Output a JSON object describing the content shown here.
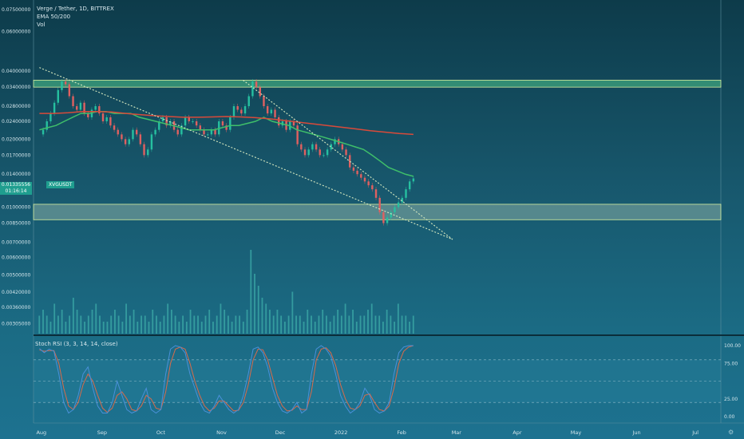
{
  "legend": {
    "title": "Verge / Tether, 1D, BITTREX",
    "ema": "EMA 50/200",
    "vol": "Vol"
  },
  "price_tag": {
    "price": "0.01335556",
    "countdown": "01:16:14"
  },
  "symbol_tag": "XVGUSDT",
  "stoch_title": "Stoch RSI (3, 3, 14, 14, close)",
  "colors": {
    "ema50": "#3fbf6a",
    "ema200": "#d94a3a",
    "zone_fill": "#9fe0b4",
    "zone_border": "#d8f0a0",
    "trend": "#d6e9c0",
    "vol": "#3aa5a5",
    "k": "#4a90d9",
    "d": "#d96a4a"
  },
  "chart_data": [
    {
      "type": "line",
      "title": "Verge / Tether, 1D, BITTREX",
      "y_ticks": [
        "0.07500000",
        "0.06000000",
        "0.04000000",
        "0.03400000",
        "0.02800000",
        "0.02400000",
        "0.02000000",
        "0.01700000",
        "0.01400000",
        "0.01000000",
        "0.00850000",
        "0.00700000",
        "0.00600000",
        "0.00500000",
        "0.00420000",
        "0.00360000",
        "0.00305000"
      ],
      "x_ticks": [
        "Aug",
        "Sep",
        "Oct",
        "Nov",
        "Dec",
        "2022",
        "Feb",
        "Mar",
        "Apr",
        "May",
        "Jun",
        "Jul"
      ],
      "series": [
        {
          "name": "close",
          "values": [
            0.021,
            0.022,
            0.024,
            0.026,
            0.029,
            0.033,
            0.036,
            0.035,
            0.031,
            0.028,
            0.027,
            0.029,
            0.026,
            0.025,
            0.027,
            0.028,
            0.026,
            0.024,
            0.025,
            0.023,
            0.022,
            0.021,
            0.02,
            0.019,
            0.02,
            0.022,
            0.021,
            0.019,
            0.017,
            0.018,
            0.021,
            0.022,
            0.024,
            0.025,
            0.023,
            0.024,
            0.022,
            0.021,
            0.023,
            0.025,
            0.024,
            0.024,
            0.023,
            0.022,
            0.021,
            0.021,
            0.022,
            0.021,
            0.024,
            0.023,
            0.022,
            0.025,
            0.028,
            0.027,
            0.026,
            0.028,
            0.031,
            0.036,
            0.034,
            0.031,
            0.028,
            0.026,
            0.027,
            0.025,
            0.023,
            0.024,
            0.022,
            0.024,
            0.023,
            0.019,
            0.018,
            0.017,
            0.018,
            0.019,
            0.018,
            0.017,
            0.017,
            0.018,
            0.019,
            0.02,
            0.019,
            0.018,
            0.017,
            0.015,
            0.0145,
            0.014,
            0.0135,
            0.013,
            0.0125,
            0.012,
            0.011,
            0.0095,
            0.0085,
            0.009,
            0.0095,
            0.01,
            0.0105,
            0.011,
            0.012,
            0.013,
            0.0134
          ]
        },
        {
          "name": "EMA 50",
          "values": [
            0.022,
            0.0225,
            0.023,
            0.024,
            0.025,
            0.026,
            0.026,
            0.0265,
            0.0265,
            0.026,
            0.026,
            0.026,
            0.025,
            0.0245,
            0.024,
            0.0235,
            0.023,
            0.0225,
            0.022,
            0.022,
            0.022,
            0.022,
            0.0225,
            0.023,
            0.023,
            0.0235,
            0.024,
            0.025,
            0.024,
            0.0235,
            0.023,
            0.022,
            0.0215,
            0.021,
            0.0205,
            0.02,
            0.0195,
            0.019,
            0.0185,
            0.018,
            0.017,
            0.016,
            0.015,
            0.0145,
            0.014,
            0.0137
          ]
        },
        {
          "name": "EMA 200",
          "values": [
            0.026,
            0.026,
            0.0262,
            0.0265,
            0.0265,
            0.0264,
            0.026,
            0.0257,
            0.0254,
            0.0252,
            0.025,
            0.025,
            0.0251,
            0.0252,
            0.0251,
            0.0249,
            0.0246,
            0.0242,
            0.0238,
            0.0234,
            0.023,
            0.0226,
            0.0222,
            0.0218,
            0.0215,
            0.0212,
            0.021
          ]
        }
      ],
      "zones": [
        {
          "low": 0.034,
          "high": 0.0365
        },
        {
          "low": 0.0088,
          "high": 0.0103
        }
      ],
      "trendlines": [
        {
          "from": {
            "x": "2021-07-31",
            "y": 0.0415
          },
          "to": {
            "x": "2022-02-27",
            "y": 0.0072
          }
        },
        {
          "from": {
            "x": "2021-11-12",
            "y": 0.0365
          },
          "to": {
            "x": "2022-02-27",
            "y": 0.0072
          }
        }
      ]
    },
    {
      "type": "bar",
      "title": "Vol",
      "values": [
        3,
        4,
        3,
        2,
        5,
        3,
        4,
        2,
        3,
        6,
        4,
        3,
        2,
        3,
        4,
        5,
        3,
        2,
        2,
        3,
        4,
        3,
        2,
        5,
        3,
        4,
        2,
        3,
        3,
        2,
        4,
        3,
        2,
        3,
        5,
        4,
        3,
        2,
        3,
        2,
        4,
        3,
        3,
        2,
        3,
        4,
        2,
        3,
        5,
        4,
        3,
        2,
        3,
        3,
        2,
        4,
        14,
        10,
        8,
        6,
        5,
        4,
        3,
        4,
        3,
        2,
        3,
        7,
        3,
        3,
        2,
        4,
        3,
        2,
        3,
        4,
        3,
        2,
        3,
        4,
        3,
        5,
        3,
        4,
        2,
        3,
        3,
        4,
        5,
        3,
        3,
        2,
        4,
        3,
        2,
        5,
        3,
        3,
        2,
        3
      ]
    },
    {
      "type": "line",
      "title": "Stoch RSI (3, 3, 14, 14, close)",
      "y_ticks": [
        "100.00",
        "75.00",
        "25.00",
        "0.00"
      ],
      "ylim": [
        0,
        100
      ],
      "series": [
        {
          "name": "K",
          "values": [
            96,
            90,
            95,
            92,
            60,
            20,
            5,
            10,
            30,
            60,
            70,
            40,
            15,
            5,
            5,
            20,
            50,
            30,
            10,
            5,
            8,
            25,
            40,
            10,
            5,
            10,
            60,
            95,
            100,
            98,
            90,
            60,
            40,
            20,
            8,
            5,
            15,
            30,
            20,
            10,
            5,
            10,
            30,
            60,
            95,
            98,
            90,
            70,
            40,
            20,
            8,
            5,
            10,
            20,
            5,
            10,
            60,
            95,
            100,
            95,
            85,
            60,
            30,
            15,
            5,
            10,
            20,
            40,
            30,
            10,
            5,
            8,
            20,
            60,
            90,
            98,
            100,
            100
          ]
        },
        {
          "name": "D",
          "values": [
            94,
            92,
            93,
            93,
            75,
            40,
            15,
            10,
            20,
            45,
            60,
            50,
            30,
            12,
            6,
            12,
            30,
            35,
            25,
            10,
            8,
            15,
            30,
            25,
            12,
            10,
            35,
            75,
            95,
            98,
            95,
            75,
            50,
            30,
            15,
            8,
            12,
            22,
            22,
            15,
            8,
            9,
            20,
            45,
            80,
            95,
            94,
            80,
            55,
            30,
            15,
            8,
            9,
            15,
            10,
            10,
            35,
            80,
            95,
            97,
            90,
            72,
            45,
            25,
            12,
            10,
            15,
            30,
            32,
            20,
            10,
            8,
            15,
            40,
            75,
            92,
            98,
            100
          ]
        }
      ]
    }
  ]
}
